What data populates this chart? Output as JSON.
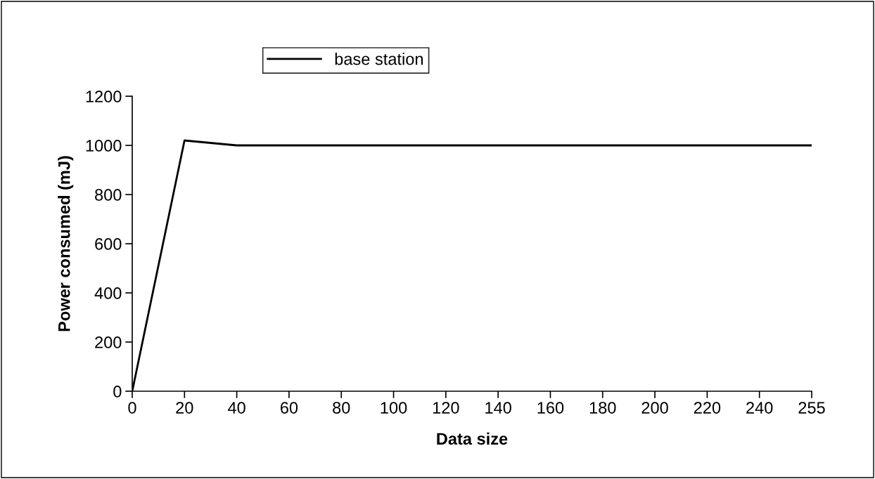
{
  "chart_data": {
    "type": "line",
    "xlabel": "Data size",
    "ylabel": "Power consumed (mJ)",
    "categories": [
      "0",
      "20",
      "40",
      "60",
      "80",
      "100",
      "120",
      "140",
      "160",
      "180",
      "200",
      "220",
      "240",
      "255"
    ],
    "series": [
      {
        "name": "base station",
        "color": "#000000",
        "values": [
          0,
          1020,
          1000,
          1000,
          1000,
          1000,
          1000,
          1000,
          1000,
          1000,
          1000,
          1000,
          1000,
          1000
        ]
      }
    ],
    "ylim": [
      0,
      1200
    ],
    "yticks": [
      0,
      200,
      400,
      600,
      800,
      1000,
      1200
    ],
    "grid": false,
    "legend": "top left",
    "marker": "none",
    "line_style": "solid"
  }
}
